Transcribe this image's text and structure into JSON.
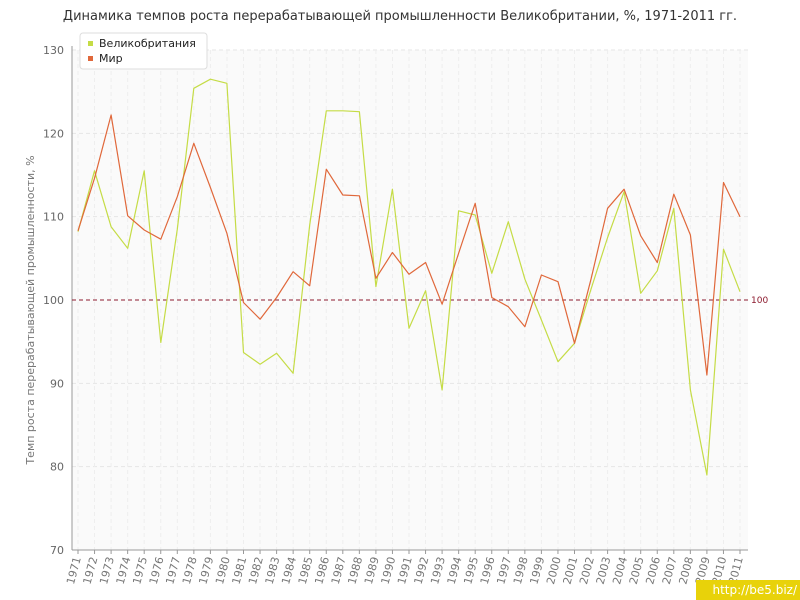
{
  "chart_data": {
    "type": "line",
    "title": "Динамика темпов роста перерабатывающей промышленности Великобритании, %, 1971-2011 гг.",
    "xlabel": "",
    "ylabel": "Темп роста перерабатывающей промышленности, %",
    "ylim": [
      70,
      130
    ],
    "yticks": [
      70,
      80,
      90,
      100,
      110,
      120,
      130
    ],
    "categories": [
      "1971",
      "1972",
      "1973",
      "1974",
      "1975",
      "1976",
      "1977",
      "1978",
      "1979",
      "1980",
      "1981",
      "1982",
      "1983",
      "1984",
      "1985",
      "1986",
      "1987",
      "1988",
      "1989",
      "1990",
      "1991",
      "1992",
      "1993",
      "1994",
      "1995",
      "1996",
      "1997",
      "1998",
      "1999",
      "2000",
      "2001",
      "2002",
      "2003",
      "2004",
      "2005",
      "2006",
      "2007",
      "2008",
      "2009",
      "2010",
      "2011"
    ],
    "series": [
      {
        "name": "Великобритания",
        "color": "#c5dc46",
        "values": [
          108.2,
          115.5,
          108.8,
          106.2,
          115.5,
          94.9,
          108.5,
          125.4,
          126.5,
          126.0,
          93.7,
          92.3,
          93.6,
          91.2,
          109.0,
          122.7,
          122.7,
          122.6,
          101.6,
          113.3,
          96.6,
          101.1,
          89.2,
          110.7,
          110.2,
          103.2,
          109.4,
          102.5,
          97.6,
          92.6,
          94.8,
          101.3,
          107.5,
          113.0,
          100.8,
          103.5,
          111.0,
          89.2,
          79.0,
          106.1,
          101.0
        ]
      },
      {
        "name": "Мир",
        "color": "#e0683b",
        "values": [
          108.3,
          114.6,
          122.2,
          110.1,
          108.4,
          107.3,
          112.4,
          118.8,
          113.5,
          108.0,
          99.7,
          97.7,
          100.3,
          103.4,
          101.7,
          115.7,
          112.6,
          112.5,
          102.6,
          105.7,
          103.1,
          104.5,
          99.5,
          105.6,
          111.6,
          100.3,
          99.2,
          96.8,
          103.0,
          102.2,
          94.8,
          102.5,
          111.0,
          113.3,
          107.7,
          104.5,
          112.7,
          107.8,
          91.0,
          114.1,
          110.0
        ]
      }
    ],
    "reference_line": {
      "value": 100,
      "label": "100",
      "color": "#8c1a2e"
    },
    "grid": true,
    "legend": "top-left"
  },
  "watermark": "http://be5.biz/"
}
